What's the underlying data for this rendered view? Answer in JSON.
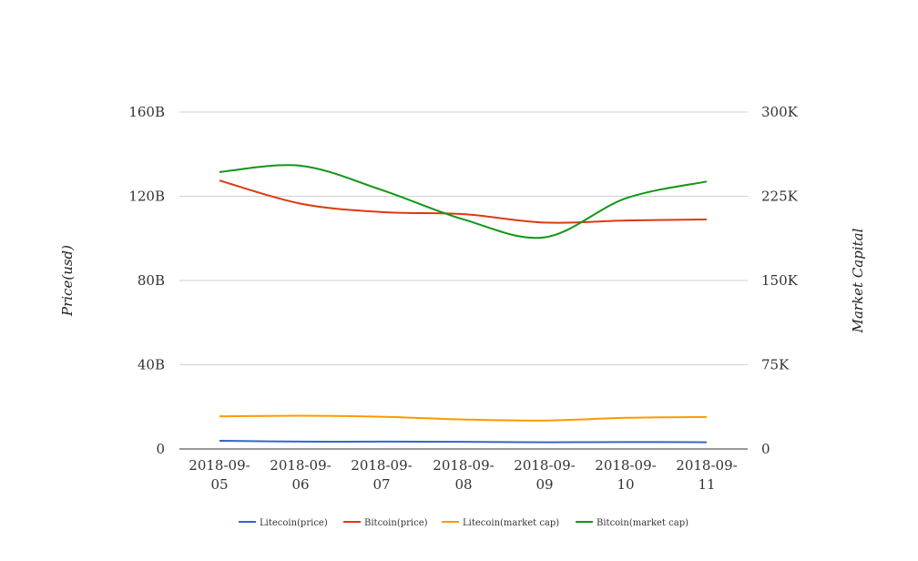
{
  "chart_data": {
    "type": "line",
    "title": "",
    "x": [
      "2018-09-05",
      "2018-09-06",
      "2018-09-07",
      "2018-09-08",
      "2018-09-09",
      "2018-09-10",
      "2018-09-11"
    ],
    "x_tick_labels": [
      [
        "2018-09-",
        "05"
      ],
      [
        "2018-09-",
        "06"
      ],
      [
        "2018-09-",
        "07"
      ],
      [
        "2018-09-",
        "08"
      ],
      [
        "2018-09-",
        "09"
      ],
      [
        "2018-09-",
        "10"
      ],
      [
        "2018-09-",
        "11"
      ]
    ],
    "ylabel": "Price(usd)",
    "ylabel_right": "Market Capital",
    "ylim": [
      0,
      160
    ],
    "ylim_right": [
      0,
      300
    ],
    "yticks": [
      "0",
      "40B",
      "80B",
      "120B",
      "160B"
    ],
    "yticks_right": [
      "0",
      "75K",
      "150K",
      "225K",
      "300K"
    ],
    "grid": true,
    "legend_position": "bottom",
    "series": [
      {
        "name": "Litecoin(price)",
        "color": "#3366cc",
        "axis": "left",
        "values": [
          3.9,
          3.5,
          3.5,
          3.4,
          3.2,
          3.3,
          3.2
        ]
      },
      {
        "name": "Bitcoin(price)",
        "color": "#dc3912",
        "axis": "left",
        "values": [
          127.5,
          116.5,
          112.5,
          111.5,
          107.5,
          108.5,
          109.0
        ]
      },
      {
        "name": "Litecoin(market cap)",
        "color": "#ff9900",
        "axis": "left",
        "values": [
          15.5,
          15.8,
          15.3,
          14.0,
          13.5,
          14.8,
          15.2
        ]
      },
      {
        "name": "Bitcoin(market cap)",
        "color": "#109618",
        "axis": "left",
        "values": [
          131.5,
          134.5,
          123.0,
          109.0,
          100.5,
          119.0,
          127.0
        ]
      }
    ]
  }
}
